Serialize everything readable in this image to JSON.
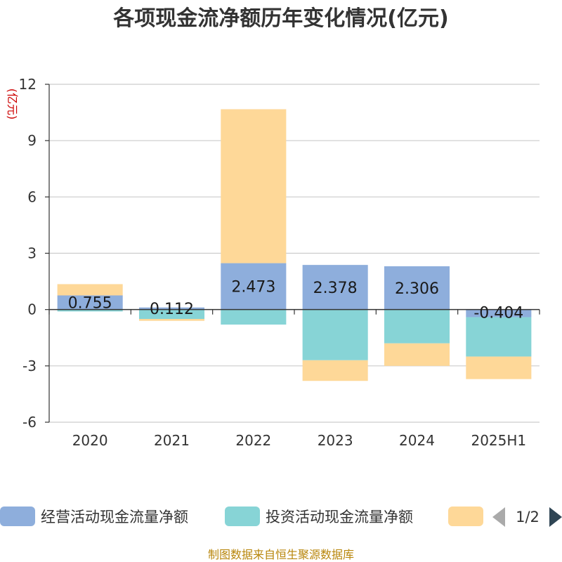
{
  "chart_data": {
    "type": "bar",
    "stacked": true,
    "title": "各项现金流净额历年变化情况(亿元)",
    "ylabel": "(亿元)",
    "categories": [
      "2020",
      "2021",
      "2022",
      "2023",
      "2024",
      "2025H1"
    ],
    "ylim": [
      -6,
      12
    ],
    "yticks": [
      -6,
      -3,
      0,
      3,
      6,
      9,
      12
    ],
    "grid": true,
    "series": [
      {
        "name": "经营活动现金流量净额",
        "color": "#8eaedc",
        "values": [
          0.755,
          0.112,
          2.473,
          2.378,
          2.306,
          -0.404
        ]
      },
      {
        "name": "投资活动现金流量净额",
        "color": "#87d4d6",
        "values": [
          -0.1,
          -0.5,
          -0.8,
          -2.7,
          -1.8,
          -2.1
        ]
      },
      {
        "name": "",
        "color": "#fed898",
        "values": [
          0.6,
          -0.1,
          8.2,
          -1.1,
          -1.2,
          -1.2
        ]
      }
    ],
    "data_labels": [
      "0.755",
      "0.112",
      "2.473",
      "2.378",
      "2.306",
      "-0.404"
    ],
    "legend": {
      "placement": "bottom",
      "page": "1/2"
    }
  },
  "source_note": "制图数据来自恒生聚源数据库"
}
